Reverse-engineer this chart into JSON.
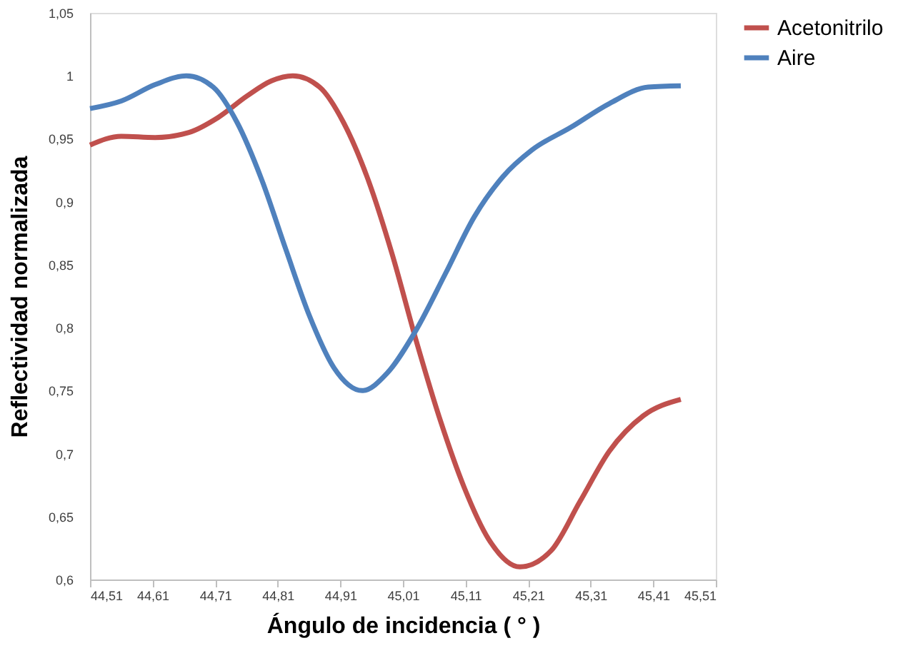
{
  "chart_data": {
    "type": "line",
    "xlabel": "Ángulo de incidencia ( ° )",
    "ylabel": "Reflectividad normalizada",
    "xlim": [
      44.51,
      45.51
    ],
    "ylim": [
      0.6,
      1.05
    ],
    "xticks": [
      {
        "value": 44.51,
        "label": "44,51"
      },
      {
        "value": 44.61,
        "label": "44,61"
      },
      {
        "value": 44.71,
        "label": "44,71"
      },
      {
        "value": 44.81,
        "label": "44,81"
      },
      {
        "value": 44.91,
        "label": "44,91"
      },
      {
        "value": 45.01,
        "label": "45,01"
      },
      {
        "value": 45.11,
        "label": "45,11"
      },
      {
        "value": 45.21,
        "label": "45,21"
      },
      {
        "value": 45.31,
        "label": "45,31"
      },
      {
        "value": 45.41,
        "label": "45,41"
      },
      {
        "value": 45.51,
        "label": "45,51"
      }
    ],
    "yticks": [
      {
        "value": 0.6,
        "label": "0,6"
      },
      {
        "value": 0.65,
        "label": "0,65"
      },
      {
        "value": 0.7,
        "label": "0,7"
      },
      {
        "value": 0.75,
        "label": "0,75"
      },
      {
        "value": 0.8,
        "label": "0,8"
      },
      {
        "value": 0.85,
        "label": "0,85"
      },
      {
        "value": 0.9,
        "label": "0,9"
      },
      {
        "value": 0.95,
        "label": "0,95"
      },
      1,
      {
        "value": 1.05,
        "label": "1,05"
      }
    ],
    "grid": false,
    "legend": "right",
    "marker": "none",
    "line_style": "solid",
    "series": [
      {
        "name": "Acetonitrilo",
        "color": "#c0504d",
        "x": [
          44.51,
          44.56,
          44.614,
          44.668,
          44.715,
          44.761,
          44.8,
          44.834,
          44.877,
          44.915,
          44.954,
          44.993,
          45.031,
          45.07,
          45.108,
          45.147,
          45.197,
          45.247,
          45.293,
          45.34,
          45.394,
          45.454
        ],
        "values": [
          0.945,
          0.952,
          0.951,
          0.955,
          0.967,
          0.984,
          0.996,
          1.0,
          0.991,
          0.963,
          0.918,
          0.858,
          0.79,
          0.726,
          0.673,
          0.632,
          0.61,
          0.623,
          0.662,
          0.702,
          0.73,
          0.743
        ]
      },
      {
        "name": "Aire",
        "color": "#4f81bd",
        "x": [
          44.51,
          44.56,
          44.614,
          44.664,
          44.707,
          44.745,
          44.784,
          44.823,
          44.861,
          44.9,
          44.945,
          44.985,
          45.031,
          45.078,
          45.124,
          45.17,
          45.216,
          45.278,
          45.34,
          45.402,
          45.454
        ],
        "values": [
          0.974,
          0.98,
          0.993,
          1.0,
          0.991,
          0.963,
          0.918,
          0.862,
          0.809,
          0.768,
          0.75,
          0.764,
          0.798,
          0.843,
          0.888,
          0.92,
          0.941,
          0.959,
          0.978,
          0.991,
          0.992
        ]
      }
    ]
  }
}
